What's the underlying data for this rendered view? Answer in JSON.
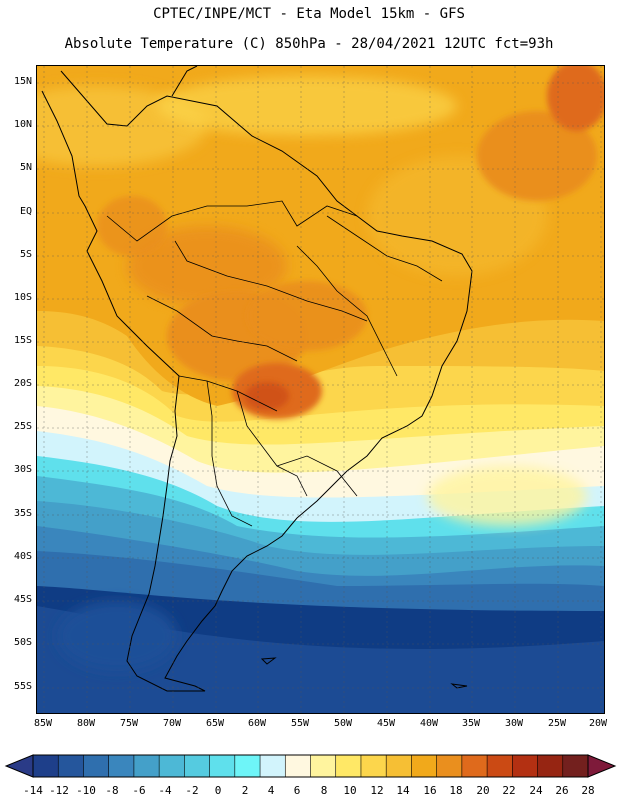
{
  "header": {
    "line1": "CPTEC/INPE/MCT -  Eta Model 15km - GFS",
    "line2": "Absolute Temperature (C) 850hPa - 28/04/2021 12UTC fct=93h"
  },
  "axes": {
    "lat_labels": [
      "15N",
      "10N",
      "5N",
      "EQ",
      "5S",
      "10S",
      "15S",
      "20S",
      "25S",
      "30S",
      "35S",
      "40S",
      "45S",
      "50S",
      "55S"
    ],
    "lon_labels": [
      "85W",
      "80W",
      "75W",
      "70W",
      "65W",
      "60W",
      "55W",
      "50W",
      "45W",
      "40W",
      "35W",
      "30W",
      "25W",
      "20W"
    ]
  },
  "colorbar": {
    "labels": [
      "-14",
      "-12",
      "-10",
      "-8",
      "-6",
      "-4",
      "-2",
      "0",
      "2",
      "4",
      "6",
      "8",
      "10",
      "12",
      "14",
      "16",
      "18",
      "20",
      "22",
      "24",
      "26",
      "28"
    ],
    "colors": [
      "#1e3f8a",
      "#25569c",
      "#2f6fae",
      "#3a86bd",
      "#44a0c9",
      "#4db8d6",
      "#55cbe0",
      "#5fe0ec",
      "#6ef5f8",
      "#d2f4fc",
      "#fff8e0",
      "#fff49e",
      "#ffe866",
      "#fcd64c",
      "#f6bf34",
      "#f1a91b",
      "#ea8f1e",
      "#df6a1c",
      "#cb4a14",
      "#b33012",
      "#962512",
      "#73201e"
    ],
    "low_color": "#2a3b87",
    "high_color": "#7e1a3a"
  }
}
